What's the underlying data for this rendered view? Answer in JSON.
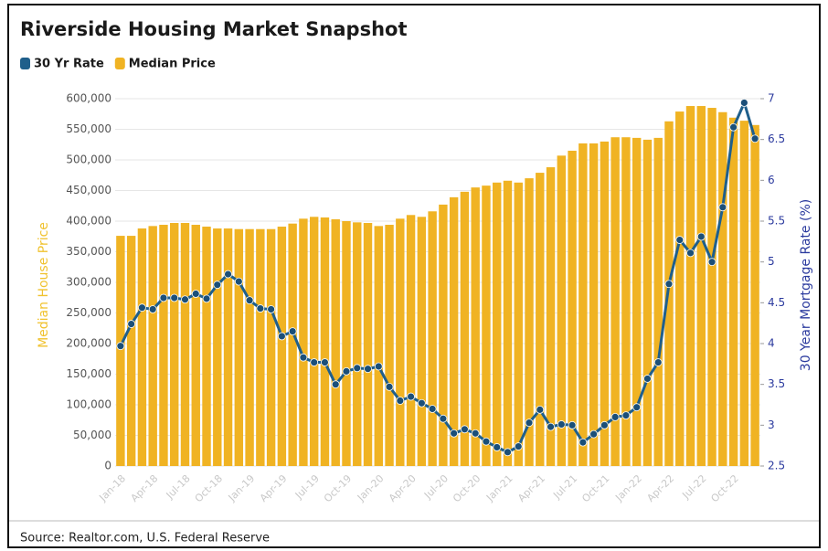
{
  "chart_data": {
    "type": "bar",
    "title": "Riverside Housing Market Snapshot",
    "source": "Source: Realtor.com, U.S. Federal Reserve",
    "ylabel": "Median House Price",
    "y2label": "30 Year Mortgage Rate (%)",
    "categories": [
      "Jan-18",
      null,
      null,
      "Apr-18",
      null,
      null,
      "Jul-18",
      null,
      null,
      "Oct-18",
      null,
      null,
      "Jan-19",
      null,
      null,
      "Apr-19",
      null,
      null,
      "Jul-19",
      null,
      null,
      "Oct-19",
      null,
      null,
      "Jan-20",
      null,
      null,
      "Apr-20",
      null,
      null,
      "Jul-20",
      null,
      null,
      "Oct-20",
      null,
      null,
      "Jan-21",
      null,
      null,
      "Apr-21",
      null,
      null,
      "Jul-21",
      null,
      null,
      "Oct-21",
      null,
      null,
      "Jan-22",
      null,
      null,
      "Apr-22",
      null,
      null,
      "Jul-22",
      null,
      null,
      "Oct-22",
      null,
      null
    ],
    "series": [
      {
        "name": "30 Yr Rate",
        "type": "line",
        "axis": "y2",
        "color": "#1f5f8b",
        "values": [
          3.97,
          4.24,
          4.44,
          4.42,
          4.56,
          4.56,
          4.54,
          4.61,
          4.55,
          4.72,
          4.85,
          4.76,
          4.53,
          4.43,
          4.42,
          4.09,
          4.15,
          3.83,
          3.77,
          3.77,
          3.5,
          3.66,
          3.7,
          3.69,
          3.72,
          3.47,
          3.3,
          3.35,
          3.27,
          3.2,
          3.08,
          2.9,
          2.95,
          2.9,
          2.8,
          2.73,
          2.67,
          2.74,
          3.03,
          3.19,
          2.98,
          3.01,
          3.0,
          2.79,
          2.89,
          3.0,
          3.1,
          3.12,
          3.22,
          3.57,
          3.77,
          4.73,
          5.27,
          5.11,
          5.31,
          5.0,
          5.67,
          6.65,
          6.95,
          6.51
        ]
      },
      {
        "name": "Median Price",
        "type": "bar",
        "color": "#f0b323",
        "values": [
          376000,
          376000,
          388000,
          392000,
          394000,
          397000,
          397000,
          394000,
          391000,
          388000,
          388000,
          387000,
          387000,
          387000,
          387000,
          391000,
          396000,
          404000,
          407000,
          406000,
          403000,
          400000,
          398000,
          397000,
          392000,
          394000,
          404000,
          410000,
          407000,
          416000,
          427000,
          439000,
          448000,
          455000,
          458000,
          463000,
          466000,
          463000,
          470000,
          479000,
          488000,
          507000,
          515000,
          527000,
          527000,
          530000,
          537000,
          537000,
          536000,
          533000,
          536000,
          563000,
          579000,
          588000,
          588000,
          585000,
          578000,
          569000,
          564000,
          557000
        ]
      }
    ],
    "ylim": [
      0,
      600000
    ],
    "yticks": [
      0,
      {
        "value": 50000,
        "label": "50,000"
      },
      {
        "value": 100000,
        "label": "100,000"
      },
      {
        "value": 150000,
        "label": "150,000"
      },
      {
        "value": 200000,
        "label": "200,000"
      },
      {
        "value": 250000,
        "label": "250,000"
      },
      {
        "value": 300000,
        "label": "300,000"
      },
      {
        "value": 350000,
        "label": "350,000"
      },
      {
        "value": 400000,
        "label": "400,000"
      },
      {
        "value": 450000,
        "label": "450,000"
      },
      {
        "value": 500000,
        "label": "500,000"
      },
      {
        "value": 550000,
        "label": "550,000"
      },
      {
        "value": 600000,
        "label": "600,000"
      }
    ],
    "y2lim": [
      2.5,
      7
    ],
    "y2ticks": [
      2.5,
      3,
      3.5,
      4,
      4.5,
      5,
      5.5,
      6,
      6.5,
      7
    ],
    "grid": true
  }
}
